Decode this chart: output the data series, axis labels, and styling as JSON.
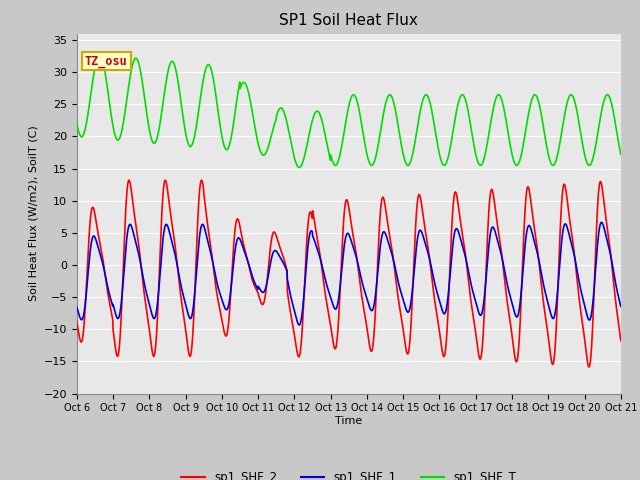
{
  "title": "SP1 Soil Heat Flux",
  "xlabel": "Time",
  "ylabel": "Soil Heat Flux (W/m2), SoilT (C)",
  "ylim": [
    -20,
    36
  ],
  "yticks": [
    -20,
    -15,
    -10,
    -5,
    0,
    5,
    10,
    15,
    20,
    25,
    30,
    35
  ],
  "xtick_labels": [
    "Oct 6",
    "Oct 7",
    "Oct 8",
    "Oct 9",
    "Oct 10",
    "Oct 11",
    "Oct 12",
    "Oct 13",
    "Oct 14",
    "Oct 15",
    "Oct 16",
    "Oct 17",
    "Oct 18",
    "Oct 19",
    "Oct 20",
    "Oct 21"
  ],
  "color_shf2": "#ff0000",
  "color_shf1": "#0000dd",
  "color_shft": "#00dd00",
  "fig_bg": "#c8c8c8",
  "plot_bg": "#e8e8e8",
  "annotation_text": "TZ_osu",
  "annotation_bg": "#ffffcc",
  "annotation_border": "#ccaa00",
  "legend_labels": [
    "sp1_SHF_2",
    "sp1_SHF_1",
    "sp1_SHF_T"
  ],
  "n_days": 15,
  "samples_per_day": 96
}
